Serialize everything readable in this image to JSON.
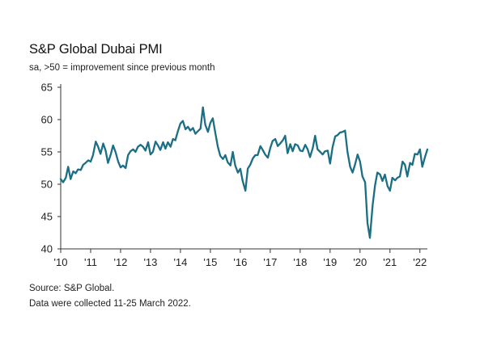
{
  "header": {
    "title": "S&P Global Dubai PMI",
    "subtitle": "sa, >50 = improvement since previous month"
  },
  "footer": {
    "source": "Source: S&P Global.",
    "collected": "Data were collected 11-25 March 2022."
  },
  "colors": {
    "line": "#1b6e84",
    "axis": "#333333",
    "grid": "#d0d0d0"
  },
  "chart_data": {
    "type": "line",
    "title": "S&P Global Dubai PMI",
    "subtitle": "sa, >50 = improvement since previous month",
    "xlabel": "",
    "ylabel": "",
    "ylim": [
      40,
      65
    ],
    "xlim": [
      2010.0,
      2022.25
    ],
    "grid": "none",
    "legend": "none",
    "y_ticks": [
      "40",
      "45",
      "50",
      "55",
      "60",
      "65"
    ],
    "x_ticks": [
      "'10",
      "'11",
      "'12",
      "'13",
      "'14",
      "'15",
      "'16",
      "'17",
      "'18",
      "'19",
      "'20",
      "'21",
      "'22"
    ],
    "x_tick_values": [
      2010,
      2011,
      2012,
      2013,
      2014,
      2015,
      2016,
      2017,
      2018,
      2019,
      2020,
      2021,
      2022
    ],
    "series": [
      {
        "values": [
          [
            2010.0,
            50.8
          ],
          [
            2010.08,
            50.3
          ],
          [
            2010.17,
            51.0
          ],
          [
            2010.25,
            52.7
          ],
          [
            2010.33,
            50.8
          ],
          [
            2010.42,
            52.0
          ],
          [
            2010.5,
            51.7
          ],
          [
            2010.58,
            52.3
          ],
          [
            2010.67,
            52.2
          ],
          [
            2010.75,
            53.0
          ],
          [
            2010.83,
            53.3
          ],
          [
            2010.92,
            53.7
          ],
          [
            2011.0,
            53.5
          ],
          [
            2011.08,
            54.5
          ],
          [
            2011.17,
            56.6
          ],
          [
            2011.25,
            55.8
          ],
          [
            2011.33,
            54.7
          ],
          [
            2011.42,
            56.3
          ],
          [
            2011.5,
            55.2
          ],
          [
            2011.58,
            53.3
          ],
          [
            2011.67,
            54.6
          ],
          [
            2011.75,
            56.0
          ],
          [
            2011.83,
            55.0
          ],
          [
            2011.92,
            53.5
          ],
          [
            2012.0,
            52.6
          ],
          [
            2012.08,
            52.9
          ],
          [
            2012.17,
            52.5
          ],
          [
            2012.25,
            54.5
          ],
          [
            2012.33,
            55.1
          ],
          [
            2012.42,
            55.4
          ],
          [
            2012.5,
            55.0
          ],
          [
            2012.58,
            55.8
          ],
          [
            2012.67,
            56.1
          ],
          [
            2012.75,
            55.8
          ],
          [
            2012.83,
            55.2
          ],
          [
            2012.92,
            56.5
          ],
          [
            2013.0,
            54.6
          ],
          [
            2013.08,
            55.0
          ],
          [
            2013.17,
            56.6
          ],
          [
            2013.25,
            56.0
          ],
          [
            2013.33,
            55.3
          ],
          [
            2013.42,
            56.5
          ],
          [
            2013.5,
            55.5
          ],
          [
            2013.58,
            56.5
          ],
          [
            2013.67,
            55.8
          ],
          [
            2013.75,
            57.0
          ],
          [
            2013.83,
            56.8
          ],
          [
            2013.92,
            58.3
          ],
          [
            2014.0,
            59.4
          ],
          [
            2014.08,
            59.8
          ],
          [
            2014.17,
            58.5
          ],
          [
            2014.25,
            58.9
          ],
          [
            2014.33,
            58.3
          ],
          [
            2014.42,
            58.7
          ],
          [
            2014.5,
            57.8
          ],
          [
            2014.58,
            58.2
          ],
          [
            2014.67,
            58.6
          ],
          [
            2014.75,
            61.9
          ],
          [
            2014.83,
            59.2
          ],
          [
            2014.92,
            58.1
          ],
          [
            2015.0,
            59.5
          ],
          [
            2015.08,
            60.2
          ],
          [
            2015.17,
            57.8
          ],
          [
            2015.25,
            55.8
          ],
          [
            2015.33,
            54.4
          ],
          [
            2015.42,
            53.9
          ],
          [
            2015.5,
            54.5
          ],
          [
            2015.58,
            53.4
          ],
          [
            2015.67,
            52.9
          ],
          [
            2015.75,
            55.0
          ],
          [
            2015.83,
            52.9
          ],
          [
            2015.92,
            51.8
          ],
          [
            2016.0,
            52.4
          ],
          [
            2016.08,
            50.5
          ],
          [
            2016.17,
            49.0
          ],
          [
            2016.25,
            52.4
          ],
          [
            2016.33,
            53.0
          ],
          [
            2016.42,
            54.0
          ],
          [
            2016.5,
            54.5
          ],
          [
            2016.58,
            54.5
          ],
          [
            2016.67,
            55.9
          ],
          [
            2016.75,
            55.3
          ],
          [
            2016.83,
            54.6
          ],
          [
            2016.92,
            54.1
          ],
          [
            2017.0,
            55.6
          ],
          [
            2017.08,
            56.7
          ],
          [
            2017.17,
            57.0
          ],
          [
            2017.25,
            55.9
          ],
          [
            2017.33,
            56.3
          ],
          [
            2017.42,
            56.8
          ],
          [
            2017.5,
            57.5
          ],
          [
            2017.58,
            54.8
          ],
          [
            2017.67,
            56.2
          ],
          [
            2017.75,
            55.1
          ],
          [
            2017.83,
            56.2
          ],
          [
            2017.92,
            56.0
          ],
          [
            2018.0,
            55.2
          ],
          [
            2018.08,
            55.1
          ],
          [
            2018.17,
            56.1
          ],
          [
            2018.25,
            55.4
          ],
          [
            2018.33,
            54.2
          ],
          [
            2018.42,
            55.6
          ],
          [
            2018.5,
            57.5
          ],
          [
            2018.58,
            55.4
          ],
          [
            2018.67,
            55.0
          ],
          [
            2018.75,
            54.6
          ],
          [
            2018.83,
            55.1
          ],
          [
            2018.92,
            55.2
          ],
          [
            2019.0,
            53.2
          ],
          [
            2019.08,
            55.7
          ],
          [
            2019.17,
            57.4
          ],
          [
            2019.25,
            57.6
          ],
          [
            2019.33,
            58.0
          ],
          [
            2019.42,
            58.1
          ],
          [
            2019.5,
            58.3
          ],
          [
            2019.58,
            55.0
          ],
          [
            2019.67,
            52.7
          ],
          [
            2019.75,
            51.8
          ],
          [
            2019.83,
            53.0
          ],
          [
            2019.92,
            54.6
          ],
          [
            2020.0,
            53.5
          ],
          [
            2020.08,
            51.2
          ],
          [
            2020.17,
            50.3
          ],
          [
            2020.25,
            44.0
          ],
          [
            2020.33,
            41.7
          ],
          [
            2020.42,
            46.7
          ],
          [
            2020.5,
            49.8
          ],
          [
            2020.58,
            51.8
          ],
          [
            2020.67,
            51.5
          ],
          [
            2020.75,
            50.5
          ],
          [
            2020.83,
            51.5
          ],
          [
            2020.92,
            49.7
          ],
          [
            2021.0,
            49.0
          ],
          [
            2021.08,
            51.0
          ],
          [
            2021.17,
            50.6
          ],
          [
            2021.25,
            51.0
          ],
          [
            2021.33,
            51.2
          ],
          [
            2021.42,
            53.5
          ],
          [
            2021.5,
            53.0
          ],
          [
            2021.58,
            51.2
          ],
          [
            2021.67,
            53.3
          ],
          [
            2021.75,
            53.0
          ],
          [
            2021.83,
            54.7
          ],
          [
            2021.92,
            54.6
          ],
          [
            2022.0,
            55.4
          ],
          [
            2022.08,
            52.7
          ],
          [
            2022.17,
            54.2
          ],
          [
            2022.25,
            55.4
          ]
        ]
      }
    ]
  }
}
